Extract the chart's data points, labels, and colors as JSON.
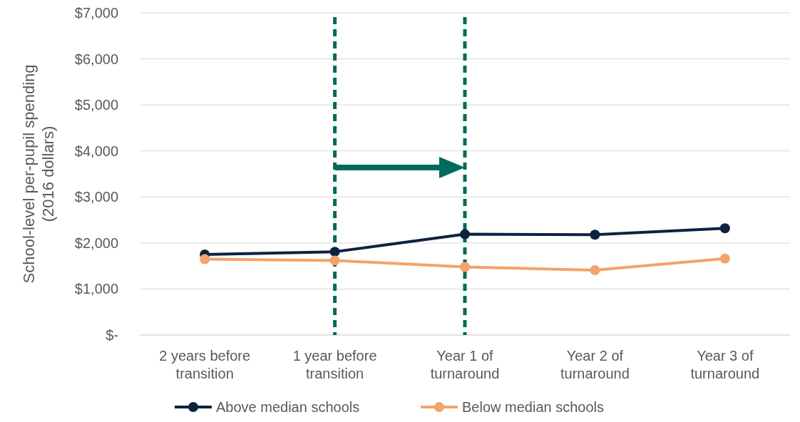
{
  "chart_data": {
    "type": "line",
    "ylabel": "School-level per-pupil spending (2016 dollars)",
    "categories": [
      "2 years before transition",
      "1 year before transition",
      "Year 1 of turnaround",
      "Year 2 of turnaround",
      "Year 3 of turnaround"
    ],
    "series": [
      {
        "name": "Above median schools",
        "color": "#0d2240",
        "values": [
          1750,
          1810,
          2190,
          2180,
          2320
        ]
      },
      {
        "name": "Below median schools",
        "color": "#f4a36a",
        "values": [
          1650,
          1620,
          1480,
          1410,
          1660
        ]
      }
    ],
    "ylim": [
      0,
      7000
    ],
    "yticks": [
      {
        "value": 0,
        "label": "$-"
      },
      {
        "value": 1000,
        "label": "$1,000"
      },
      {
        "value": 2000,
        "label": "$2,000"
      },
      {
        "value": 3000,
        "label": "$3,000"
      },
      {
        "value": 4000,
        "label": "$4,000"
      },
      {
        "value": 5000,
        "label": "$5,000"
      },
      {
        "value": 6000,
        "label": "$6,000"
      },
      {
        "value": 7000,
        "label": "$7,000"
      }
    ],
    "ref_lines": [
      {
        "axis": "x",
        "value": "1 year before transition",
        "color": "#006b5b",
        "line_style": "dashed"
      },
      {
        "axis": "x",
        "value": "Year 1 of turnaround",
        "color": "#006b5b",
        "line_style": "dashed"
      }
    ],
    "grid": "y",
    "legend": "bottom",
    "marker": "circle",
    "line_style": "solid"
  }
}
